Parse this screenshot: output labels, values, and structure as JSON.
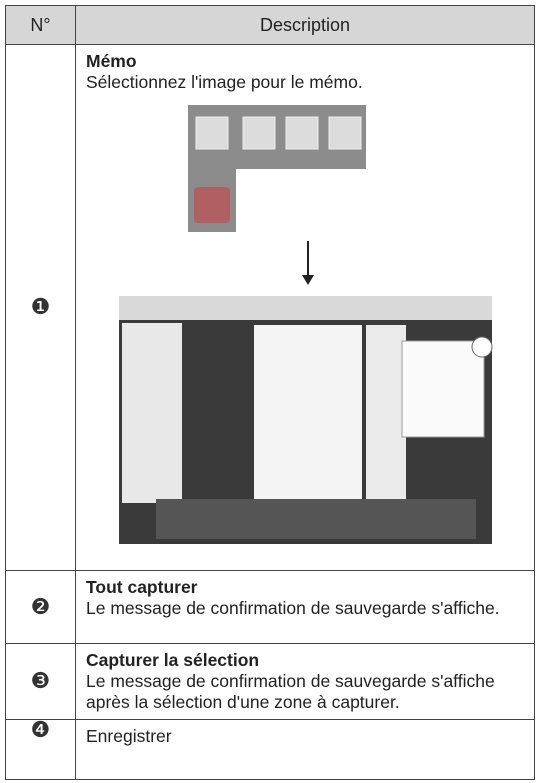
{
  "table": {
    "headers": [
      "N°",
      "Description"
    ],
    "rows": [
      {
        "number": "❶",
        "title": "Mémo",
        "text": "Sélectionnez l'image pour le mémo."
      },
      {
        "number": "❷",
        "title": "Tout capturer",
        "text": "Le message de confirmation de sauvegarde s'affiche."
      },
      {
        "number": "❸",
        "title": "Capturer la sélection",
        "text": "Le message de confirmation de sauvegarde s'affiche après la sélection d'une zone à capturer."
      },
      {
        "number": "❹",
        "text": "Enregistrer"
      }
    ]
  }
}
